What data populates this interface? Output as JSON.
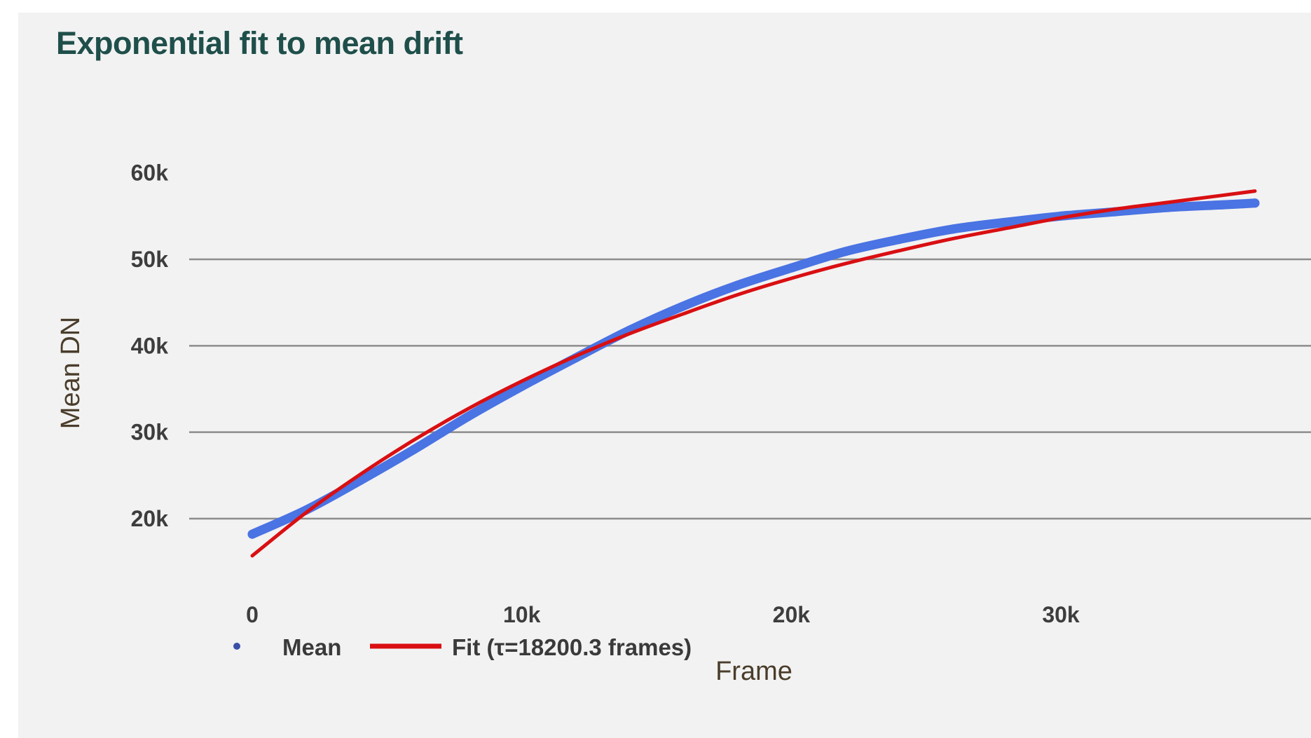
{
  "chart_data": {
    "type": "line",
    "title": "Exponential fit to mean drift",
    "xlabel": "Frame",
    "ylabel": "Mean DN",
    "xlim": [
      0,
      37500
    ],
    "ylim": [
      11000,
      61000
    ],
    "x_ticks": [
      0,
      10000,
      20000,
      30000
    ],
    "x_tick_labels": [
      "0",
      "10k",
      "20k",
      "30k"
    ],
    "y_ticks": [
      20000,
      30000,
      40000,
      50000,
      60000
    ],
    "y_tick_labels": [
      "20k",
      "30k",
      "40k",
      "50k",
      "60k"
    ],
    "grid": "horizontal",
    "legend_position": "bottom-left",
    "series": [
      {
        "name": "Mean",
        "style": "markers",
        "color": "#4a73e3",
        "x": [
          0,
          2000,
          4000,
          6000,
          8000,
          10000,
          12000,
          14000,
          16000,
          18000,
          20000,
          22000,
          24000,
          26000,
          28000,
          30000,
          32000,
          34000,
          36000,
          37200
        ],
        "y": [
          18200,
          21000,
          24400,
          28000,
          31800,
          35300,
          38600,
          41800,
          44600,
          47000,
          49000,
          50900,
          52300,
          53500,
          54300,
          55000,
          55500,
          56000,
          56300,
          56500
        ]
      },
      {
        "name": "Fit (τ=18200.3 frames)",
        "style": "line",
        "color": "#d90f12",
        "x": [
          0,
          2000,
          4000,
          6000,
          8000,
          10000,
          12000,
          14000,
          16000,
          18000,
          20000,
          22000,
          24000,
          26000,
          28000,
          30000,
          32000,
          34000,
          36000,
          37200
        ],
        "y": [
          15700,
          20700,
          25100,
          29100,
          32700,
          35900,
          38800,
          41400,
          43700,
          45900,
          47800,
          49500,
          51000,
          52400,
          53600,
          54800,
          55800,
          56600,
          57400,
          57900
        ]
      }
    ]
  }
}
